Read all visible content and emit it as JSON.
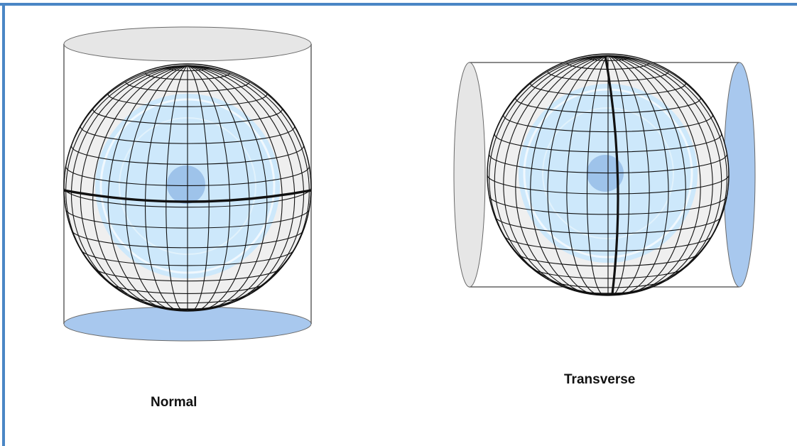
{
  "colors": {
    "frame_border": "#4a86c5",
    "cap_gray": "#e6e6e6",
    "cap_blue": "#a8c8ee",
    "globe_gray": "#efefef",
    "globe_light_blue": "#cde8fb",
    "globe_spot": "#9ec3ea",
    "line": "#111111"
  },
  "figures": {
    "normal": {
      "label": "Normal",
      "cylinder_orientation": "vertical",
      "tangent_line": "equator"
    },
    "transverse": {
      "label": "Transverse",
      "cylinder_orientation": "horizontal",
      "tangent_line": "meridian"
    }
  }
}
